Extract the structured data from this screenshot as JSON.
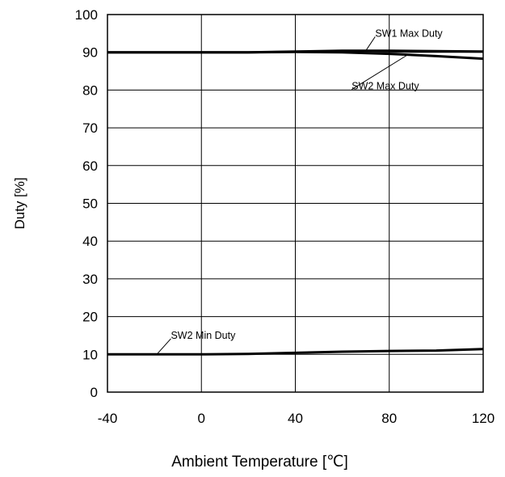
{
  "chart_data": {
    "type": "line",
    "xlabel": "Ambient Temperature [℃]",
    "ylabel": "Duty [%]",
    "xlim": [
      -40,
      120
    ],
    "ylim": [
      0,
      100
    ],
    "xticks": [
      -40,
      0,
      40,
      80,
      120
    ],
    "yticks": [
      0,
      10,
      20,
      30,
      40,
      50,
      60,
      70,
      80,
      90,
      100
    ],
    "grid": true,
    "series": [
      {
        "name": "SW1 Max Duty",
        "x": [
          -40,
          -20,
          0,
          20,
          40,
          60,
          80,
          100,
          120
        ],
        "y": [
          90.0,
          90.0,
          90.0,
          90.0,
          90.2,
          90.4,
          90.4,
          90.3,
          90.2
        ]
      },
      {
        "name": "SW2 Max Duty",
        "x": [
          -40,
          -20,
          0,
          20,
          40,
          60,
          80,
          100,
          120
        ],
        "y": [
          90.0,
          90.0,
          90.0,
          90.0,
          90.1,
          90.0,
          89.6,
          89.0,
          88.3
        ]
      },
      {
        "name": "SW2 Min Duty",
        "x": [
          -40,
          -20,
          0,
          20,
          40,
          60,
          80,
          100,
          120
        ],
        "y": [
          10.0,
          10.0,
          10.0,
          10.1,
          10.4,
          10.7,
          10.9,
          11.0,
          11.4
        ]
      }
    ],
    "annotations": [
      {
        "text": "SW1 Max Duty",
        "series": "SW1 Max Duty",
        "point_x": 70,
        "point_y": 90.4,
        "text_x": 74,
        "text_y": 95.0,
        "anchor": "start"
      },
      {
        "text": "SW2 Max Duty",
        "series": "SW2 Max Duty",
        "point_x": 88,
        "point_y": 89.4,
        "text_x": 64,
        "text_y": 81.0,
        "anchor": "start"
      },
      {
        "text": "SW2 Min Duty",
        "series": "SW2 Min Duty",
        "point_x": -19,
        "point_y": 10.0,
        "text_x": -13,
        "text_y": 15.0,
        "anchor": "start"
      }
    ],
    "colors": {
      "line": "#000000",
      "grid": "#000000",
      "background": "#ffffff"
    }
  }
}
